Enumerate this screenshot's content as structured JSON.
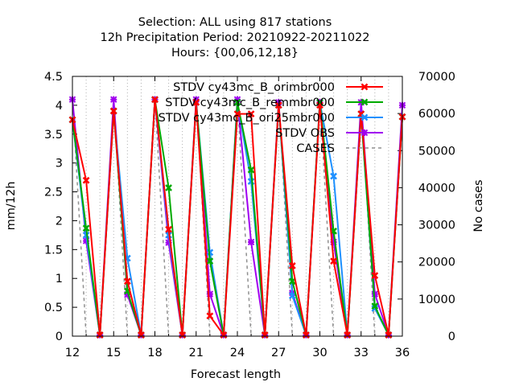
{
  "chart_data": {
    "type": "line",
    "title_lines": [
      "Selection: ALL using   817 stations",
      "12h Precipitation   Period: 20210922-20211022",
      "Hours: {00,06,12,18}"
    ],
    "xlabel": "Forecast length",
    "ylabel": "mm/12h",
    "y2label": "No cases",
    "xlim": [
      12,
      36
    ],
    "ylim": [
      0,
      4.5
    ],
    "y2lim": [
      0,
      70000
    ],
    "xticks": [
      "12",
      "15",
      "18",
      "21",
      "24",
      "27",
      "30",
      "33",
      "36"
    ],
    "yticks": [
      "0",
      "0.5",
      "1",
      "1.5",
      "2",
      "2.5",
      "3",
      "3.5",
      "4",
      "4.5"
    ],
    "y2ticks": [
      "0",
      "10000",
      "20000",
      "30000",
      "40000",
      "50000",
      "60000",
      "70000"
    ],
    "legend_position": "top-right",
    "x": [
      12,
      13,
      14,
      15,
      16,
      17,
      18,
      19,
      20,
      21,
      22,
      23,
      24,
      25,
      26,
      27,
      28,
      29,
      30,
      31,
      32,
      33,
      34,
      35,
      36
    ],
    "series": [
      {
        "name": "STDV cy43mc_B_orimbr000",
        "color": "#ff0000",
        "marker": "x",
        "axis": "y",
        "values": [
          3.75,
          2.7,
          0.02,
          3.9,
          0.95,
          0.02,
          4.1,
          1.85,
          0.02,
          4.05,
          0.35,
          0.02,
          3.85,
          3.85,
          0.02,
          4.0,
          1.22,
          0.02,
          4.0,
          1.3,
          0.02,
          3.85,
          1.05,
          0.02,
          3.8
        ]
      },
      {
        "name": "STDV cy43mc_B_remmbr000",
        "color": "#00aa00",
        "marker": "x",
        "axis": "y",
        "values": [
          3.75,
          1.87,
          0.02,
          3.9,
          0.78,
          0.02,
          4.1,
          2.57,
          0.02,
          4.05,
          1.3,
          0.02,
          4.05,
          2.88,
          0.02,
          4.0,
          0.95,
          0.02,
          4.05,
          1.82,
          0.02,
          3.85,
          0.52,
          0.02,
          3.8
        ]
      },
      {
        "name": "STDV cy43mc_B_ori25mbr000",
        "color": "#1e90ff",
        "marker": "x",
        "axis": "y",
        "values": [
          3.75,
          1.75,
          0.02,
          3.9,
          1.35,
          0.02,
          4.1,
          1.75,
          0.02,
          4.05,
          1.45,
          0.02,
          4.05,
          2.68,
          0.02,
          4.0,
          0.7,
          0.02,
          4.05,
          2.77,
          0.02,
          3.85,
          0.48,
          0.02,
          3.8
        ]
      },
      {
        "name": "STDV OBS",
        "color": "#a000f0",
        "marker": "square",
        "axis": "y",
        "values": [
          4.1,
          1.65,
          0.02,
          4.1,
          0.72,
          0.02,
          4.1,
          1.62,
          0.02,
          4.1,
          0.73,
          0.02,
          4.1,
          1.63,
          0.02,
          4.05,
          0.75,
          0.02,
          4.05,
          1.63,
          0.02,
          4.05,
          0.73,
          0.02,
          4.0
        ]
      },
      {
        "name": "CASES",
        "color": "#909090",
        "marker": "none",
        "dashed": true,
        "axis": "y2",
        "values": [
          64000,
          0,
          null,
          64000,
          0,
          null,
          64000,
          0,
          null,
          64000,
          0,
          null,
          64000,
          0,
          null,
          64000,
          0,
          null,
          64000,
          0,
          null,
          64000,
          0,
          null,
          64000
        ]
      }
    ]
  }
}
